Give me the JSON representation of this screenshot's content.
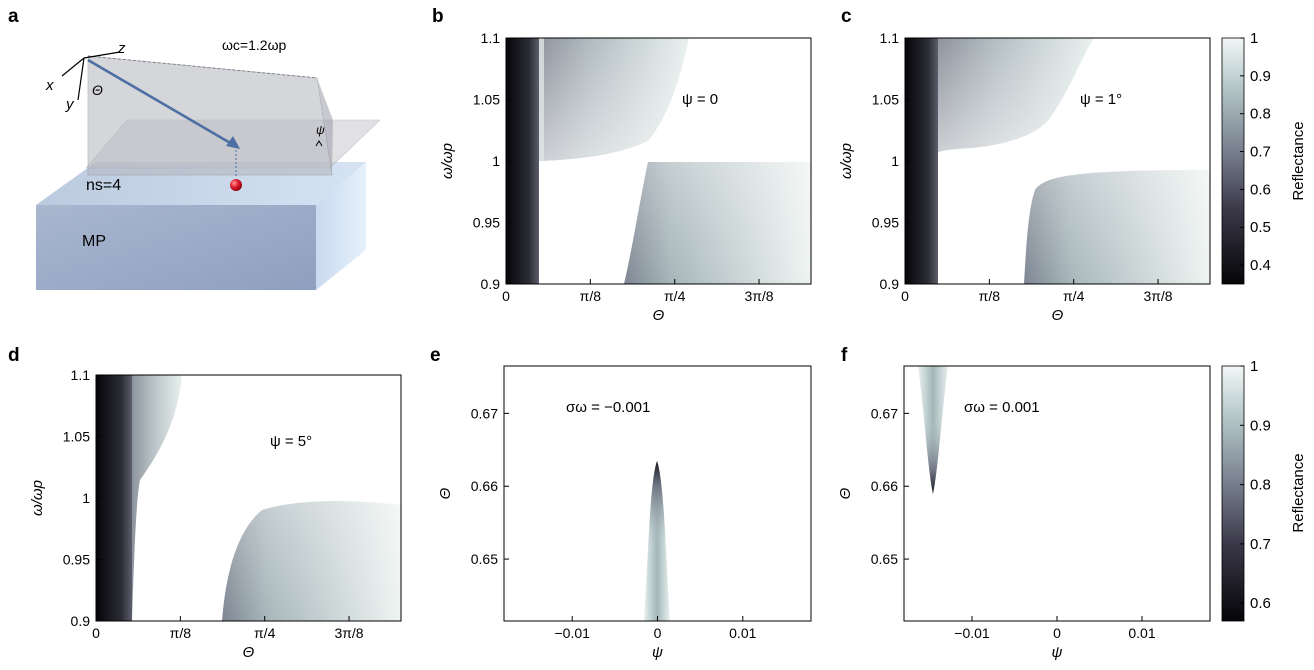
{
  "panels": {
    "a": {
      "letter": "a",
      "axis_x": "x",
      "axis_y": "y",
      "axis_z": "z",
      "theta": "Θ",
      "psi": "ψ",
      "cutoff": "ωc=1.2ωp",
      "ns": "ns=4",
      "mp": "MP"
    },
    "b": {
      "letter": "b",
      "annotation": "ψ = 0"
    },
    "c": {
      "letter": "c",
      "annotation": "ψ = 1°"
    },
    "d": {
      "letter": "d",
      "annotation": "ψ = 5°"
    },
    "e": {
      "letter": "e",
      "annotation": "σω = −0.001"
    },
    "f": {
      "letter": "f",
      "annotation": "σω = 0.001"
    }
  },
  "colorbars": [
    {
      "label": "Reflectance",
      "ticks": [
        "1",
        "0.9",
        "0.8",
        "0.7",
        "0.6",
        "0.5",
        "0.4"
      ]
    },
    {
      "label": "Reflectance",
      "ticks": [
        "1",
        "0.9",
        "0.8",
        "0.7",
        "0.6"
      ]
    }
  ],
  "chart_data": [
    {
      "panel": "b",
      "type": "heatmap",
      "xlabel": "Θ",
      "ylabel": "ω/ωp",
      "xticks": [
        "0",
        "π/8",
        "π/4",
        "3π/8"
      ],
      "yticks": [
        "0.9",
        "0.95",
        "1",
        "1.05",
        "1.1"
      ],
      "xlim": [
        0,
        1.42
      ],
      "ylim": [
        0.9,
        1.1
      ],
      "annotation": "ψ = 0",
      "colorbar_range": [
        0.35,
        1.0
      ]
    },
    {
      "panel": "c",
      "type": "heatmap",
      "xlabel": "Θ",
      "ylabel": "ω/ωp",
      "xticks": [
        "0",
        "π/8",
        "π/4",
        "3π/8"
      ],
      "yticks": [
        "0.9",
        "0.95",
        "1",
        "1.05",
        "1.1"
      ],
      "xlim": [
        0,
        1.42
      ],
      "ylim": [
        0.9,
        1.1
      ],
      "annotation": "ψ = 1°",
      "colorbar_range": [
        0.35,
        1.0
      ]
    },
    {
      "panel": "d",
      "type": "heatmap",
      "xlabel": "Θ",
      "ylabel": "ω/ωp",
      "xticks": [
        "0",
        "π/8",
        "π/4",
        "3π/8"
      ],
      "yticks": [
        "0.9",
        "0.95",
        "1",
        "1.05",
        "1.1"
      ],
      "xlim": [
        0,
        1.42
      ],
      "ylim": [
        0.9,
        1.1
      ],
      "annotation": "ψ = 5°",
      "colorbar_range": [
        0.35,
        1.0
      ]
    },
    {
      "panel": "e",
      "type": "heatmap",
      "xlabel": "ψ",
      "ylabel": "Θ",
      "xticks": [
        "−0.01",
        "0",
        "0.01"
      ],
      "yticks": [
        "0.65",
        "0.66",
        "0.67"
      ],
      "xlim": [
        -0.018,
        0.018
      ],
      "ylim": [
        0.6415,
        0.6765
      ],
      "annotation": "σω = −0.001",
      "colorbar_range": [
        0.57,
        1.0
      ]
    },
    {
      "panel": "f",
      "type": "heatmap",
      "xlabel": "ψ",
      "ylabel": "Θ",
      "xticks": [
        "−0.01",
        "0",
        "0.01"
      ],
      "yticks": [
        "0.65",
        "0.66",
        "0.67"
      ],
      "xlim": [
        -0.018,
        0.018
      ],
      "ylim": [
        0.6415,
        0.6765
      ],
      "annotation": "σω = 0.001",
      "colorbar_range": [
        0.57,
        1.0
      ]
    }
  ]
}
